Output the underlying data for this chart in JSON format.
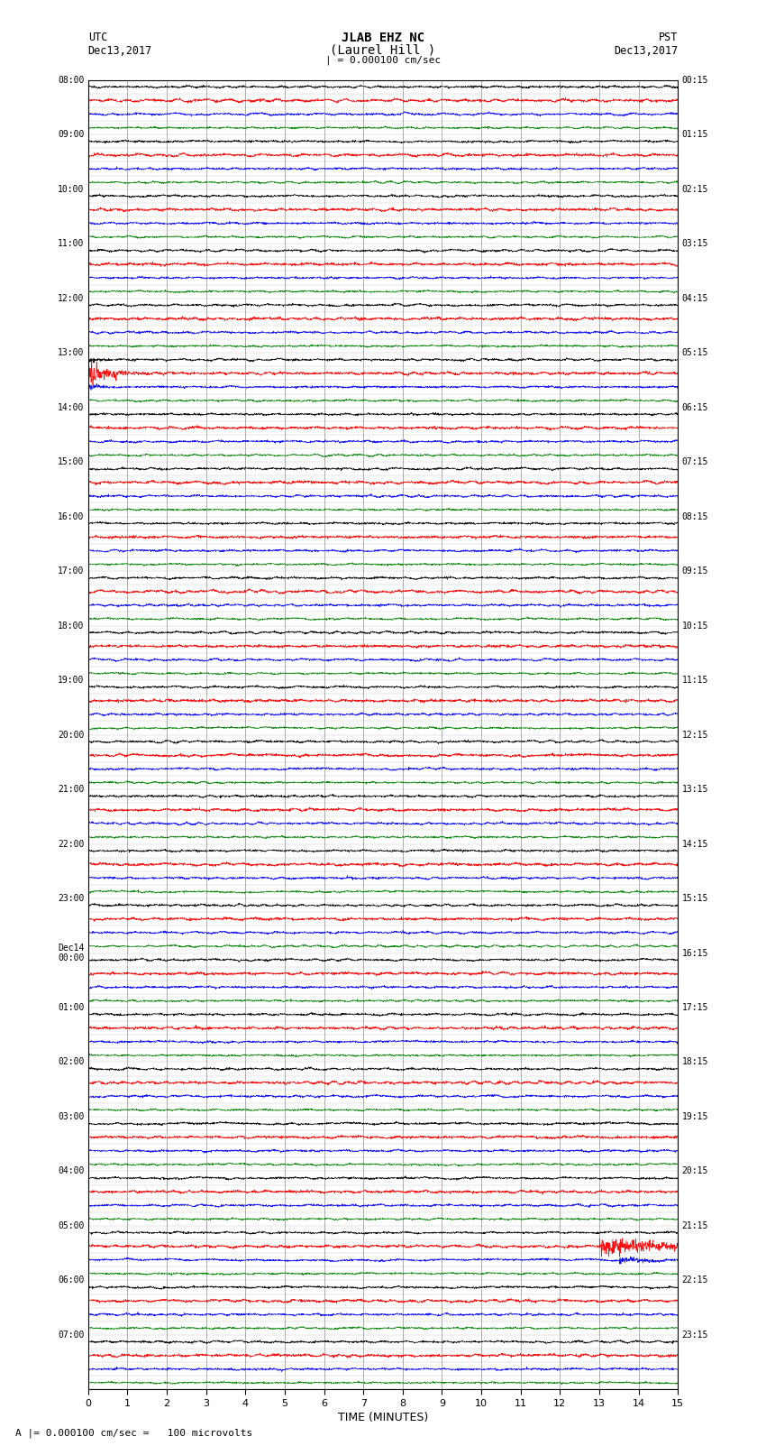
{
  "title_line1": "JLAB EHZ NC",
  "title_line2": "(Laurel Hill )",
  "scale_text": "| = 0.000100 cm/sec",
  "footer_text": "A |= 0.000100 cm/sec =   100 microvolts",
  "utc_label": "UTC",
  "utc_date": "Dec13,2017",
  "pst_label": "PST",
  "pst_date": "Dec13,2017",
  "xlabel": "TIME (MINUTES)",
  "xmin": 0,
  "xmax": 15,
  "num_rows": 96,
  "colors_cycle": [
    "black",
    "red",
    "blue",
    "green"
  ],
  "linewidth": 0.5,
  "bg_color": "white",
  "left_times": [
    "08:00",
    "",
    "",
    "",
    "09:00",
    "",
    "",
    "",
    "10:00",
    "",
    "",
    "",
    "11:00",
    "",
    "",
    "",
    "12:00",
    "",
    "",
    "",
    "13:00",
    "",
    "",
    "",
    "14:00",
    "",
    "",
    "",
    "15:00",
    "",
    "",
    "",
    "16:00",
    "",
    "",
    "",
    "17:00",
    "",
    "",
    "",
    "18:00",
    "",
    "",
    "",
    "19:00",
    "",
    "",
    "",
    "20:00",
    "",
    "",
    "",
    "21:00",
    "",
    "",
    "",
    "22:00",
    "",
    "",
    "",
    "23:00",
    "",
    "",
    "",
    "Dec14\n00:00",
    "",
    "",
    "",
    "01:00",
    "",
    "",
    "",
    "02:00",
    "",
    "",
    "",
    "03:00",
    "",
    "",
    "",
    "04:00",
    "",
    "",
    "",
    "05:00",
    "",
    "",
    "",
    "06:00",
    "",
    "",
    "",
    "07:00",
    "",
    "",
    ""
  ],
  "right_times": [
    "00:15",
    "",
    "",
    "",
    "01:15",
    "",
    "",
    "",
    "02:15",
    "",
    "",
    "",
    "03:15",
    "",
    "",
    "",
    "04:15",
    "",
    "",
    "",
    "05:15",
    "",
    "",
    "",
    "06:15",
    "",
    "",
    "",
    "07:15",
    "",
    "",
    "",
    "08:15",
    "",
    "",
    "",
    "09:15",
    "",
    "",
    "",
    "10:15",
    "",
    "",
    "",
    "11:15",
    "",
    "",
    "",
    "12:15",
    "",
    "",
    "",
    "13:15",
    "",
    "",
    "",
    "14:15",
    "",
    "",
    "",
    "15:15",
    "",
    "",
    "",
    "16:15",
    "",
    "",
    "",
    "17:15",
    "",
    "",
    "",
    "18:15",
    "",
    "",
    "",
    "19:15",
    "",
    "",
    "",
    "20:15",
    "",
    "",
    "",
    "21:15",
    "",
    "",
    "",
    "22:15",
    "",
    "",
    "",
    "23:15",
    "",
    "",
    ""
  ]
}
